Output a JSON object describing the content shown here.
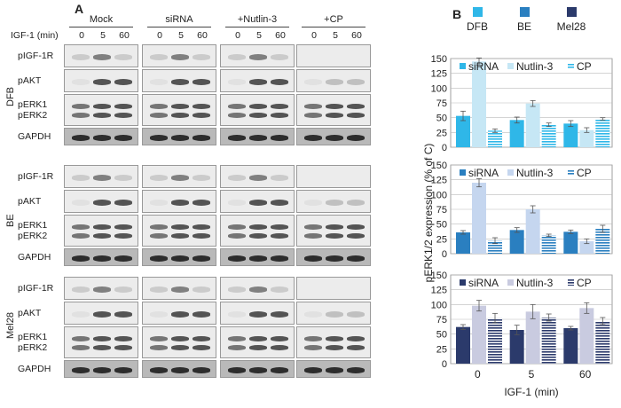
{
  "panelA": {
    "letter": "A",
    "time_axis_label": "IGF-1 (min)",
    "conditions": [
      "Mock",
      "siRNA",
      "+Nutlin-3",
      "+CP"
    ],
    "time_points": [
      "0",
      "5",
      "60"
    ],
    "groups": [
      {
        "name": "DFB",
        "rows": [
          {
            "label": "pIGF-1R"
          },
          {
            "label": "pAKT"
          },
          {
            "label": "pERK1\npERK2"
          },
          {
            "label": "GAPDH"
          }
        ]
      },
      {
        "name": "BE",
        "rows": [
          {
            "label": "pIGF-1R"
          },
          {
            "label": "pAKT"
          },
          {
            "label": "pERK1\npERK2"
          },
          {
            "label": "GAPDH"
          }
        ]
      },
      {
        "name": "Mel28",
        "rows": [
          {
            "label": "pIGF-1R"
          },
          {
            "label": "pAKT"
          },
          {
            "label": "pERK1\npERK2"
          },
          {
            "label": "GAPDH"
          }
        ]
      }
    ]
  },
  "panelB": {
    "letter": "B",
    "cell_legend": [
      {
        "name": "DFB",
        "color": "#2fb7e8"
      },
      {
        "name": "BE",
        "color": "#2a7fc0"
      },
      {
        "name": "Mel28",
        "color": "#2b3a6b"
      }
    ],
    "ylabel": "pERK1/2 expression (% of C)",
    "xlabel": "IGF-1 (min)"
  },
  "chart_data": [
    {
      "type": "bar",
      "cell_line": "DFB",
      "categories": [
        "0",
        "5",
        "60"
      ],
      "ylim": [
        0,
        150
      ],
      "yticks": [
        0,
        25,
        50,
        75,
        100,
        125,
        150
      ],
      "series": [
        {
          "name": "siRNA",
          "values": [
            53,
            46,
            40
          ],
          "errors": [
            8,
            5,
            5
          ],
          "color": "#2fb7e8"
        },
        {
          "name": "Nutlin-3",
          "values": [
            145,
            74,
            29
          ],
          "errors": [
            6,
            5,
            4
          ],
          "color": "#c6e7f5"
        },
        {
          "name": "CP",
          "values": [
            28,
            38,
            48
          ],
          "errors": [
            3,
            3,
            2
          ],
          "color": "#2fb7e8",
          "pattern": "stripes"
        }
      ]
    },
    {
      "type": "bar",
      "cell_line": "BE",
      "categories": [
        "0",
        "5",
        "60"
      ],
      "ylim": [
        0,
        150
      ],
      "yticks": [
        0,
        25,
        50,
        75,
        100,
        125,
        150
      ],
      "series": [
        {
          "name": "siRNA",
          "values": [
            36,
            40,
            37
          ],
          "errors": [
            3,
            4,
            3
          ],
          "color": "#2a7fc0"
        },
        {
          "name": "Nutlin-3",
          "values": [
            120,
            75,
            21
          ],
          "errors": [
            7,
            6,
            4
          ],
          "color": "#c5d6ef"
        },
        {
          "name": "CP",
          "values": [
            22,
            31,
            42
          ],
          "errors": [
            5,
            2,
            6
          ],
          "color": "#2a7fc0",
          "pattern": "stripes"
        }
      ]
    },
    {
      "type": "bar",
      "cell_line": "Mel28",
      "categories": [
        "0",
        "5",
        "60"
      ],
      "ylim": [
        0,
        150
      ],
      "yticks": [
        0,
        25,
        50,
        75,
        100,
        125,
        150
      ],
      "series": [
        {
          "name": "siRNA",
          "values": [
            62,
            57,
            60
          ],
          "errors": [
            4,
            8,
            3
          ],
          "color": "#2b3a6b"
        },
        {
          "name": "Nutlin-3",
          "values": [
            98,
            88,
            94
          ],
          "errors": [
            9,
            12,
            9
          ],
          "color": "#c9cbe0"
        },
        {
          "name": "CP",
          "values": [
            77,
            78,
            72
          ],
          "errors": [
            8,
            6,
            6
          ],
          "color": "#2b3a6b",
          "pattern": "stripes"
        }
      ]
    }
  ]
}
